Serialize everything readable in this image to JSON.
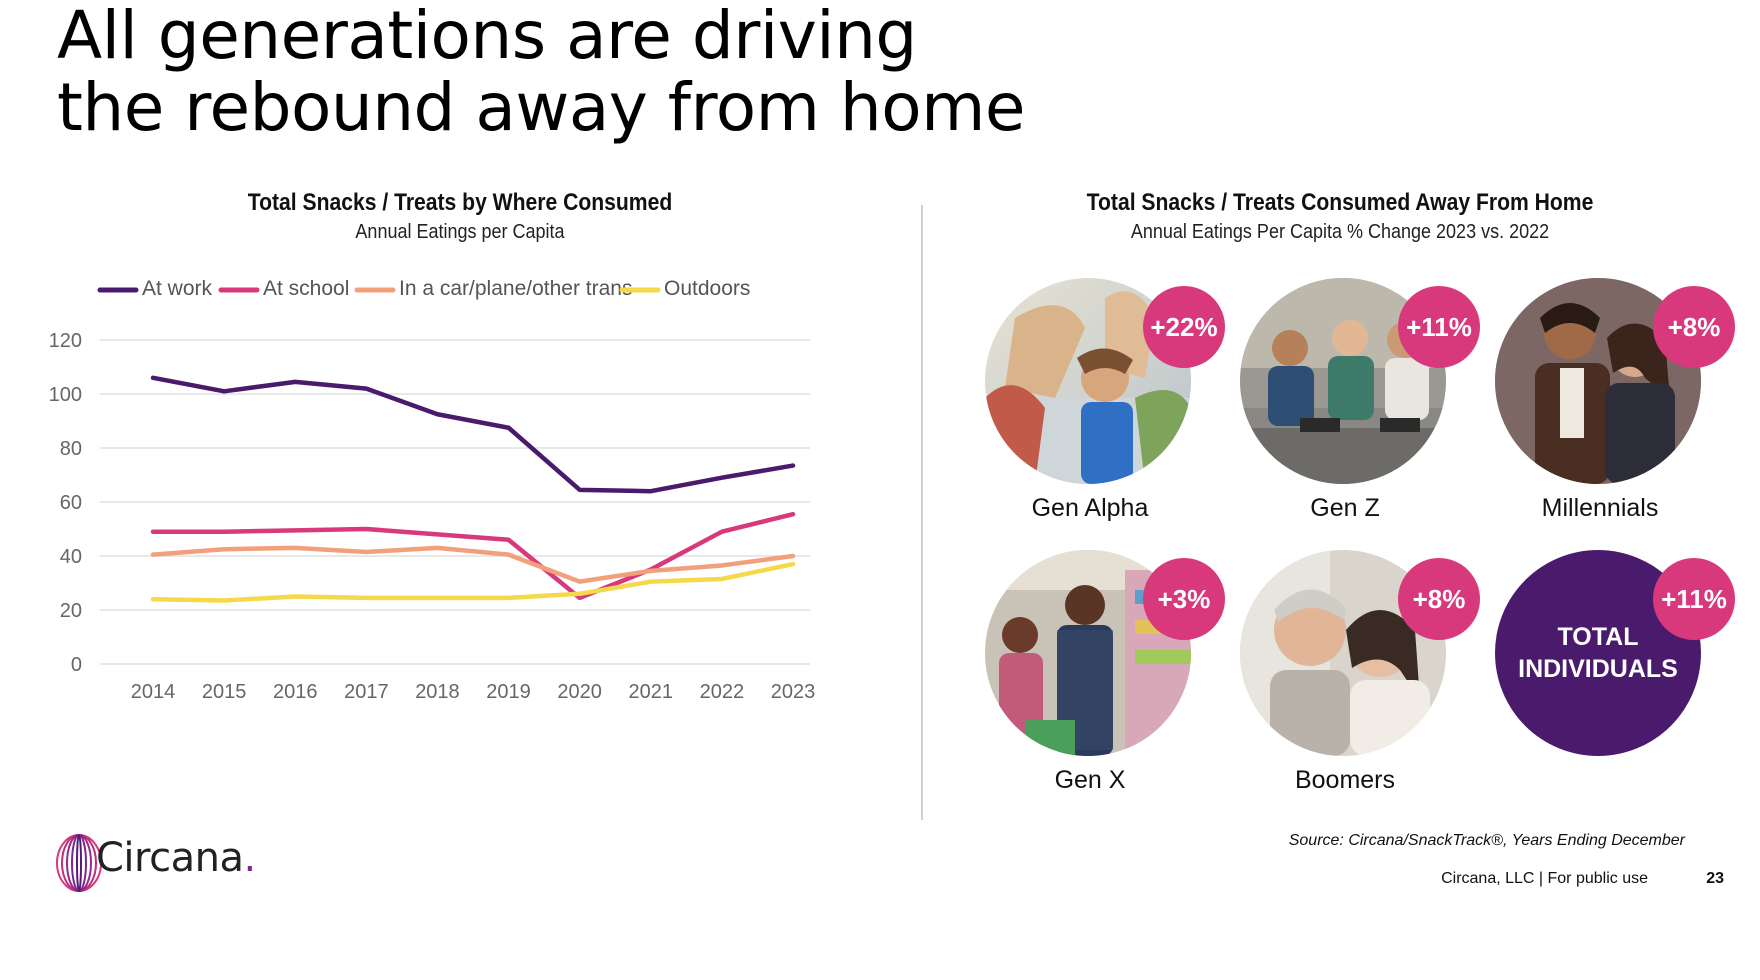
{
  "headline": {
    "line1": "All generations are driving",
    "line2": "the rebound away from home"
  },
  "left_panel": {
    "title": "Total Snacks / Treats by Where Consumed",
    "subtitle": "Annual Eatings per Capita"
  },
  "right_panel": {
    "title": "Total Snacks / Treats Consumed Away From Home",
    "subtitle": "Annual Eatings Per Capita % Change 2023 vs. 2022"
  },
  "chart_data": {
    "type": "line",
    "title": "Total Snacks / Treats by Where Consumed",
    "subtitle": "Annual Eatings per Capita",
    "x": [
      "2014",
      "2015",
      "2016",
      "2017",
      "2018",
      "2019",
      "2020",
      "2021",
      "2022",
      "2023"
    ],
    "ylim": [
      0,
      120
    ],
    "yticks": [
      0,
      20,
      40,
      60,
      80,
      100,
      120
    ],
    "grid": true,
    "legend_position": "top",
    "series": [
      {
        "name": "At work",
        "color": "#4a1a6c",
        "values": [
          106,
          101,
          104.5,
          102,
          92.5,
          87.5,
          64.5,
          64,
          69,
          73.5
        ]
      },
      {
        "name": "At school",
        "color": "#d8397c",
        "values": [
          49,
          49,
          49.5,
          50,
          48,
          46,
          24.5,
          35,
          49,
          55.5
        ]
      },
      {
        "name": "In a car/plane/other trans",
        "color": "#f2a07b",
        "values": [
          40.5,
          42.5,
          43,
          41.5,
          43,
          40.5,
          30.5,
          34.5,
          36.5,
          40
        ]
      },
      {
        "name": "Outdoors",
        "color": "#f5d94a",
        "values": [
          24,
          23.5,
          25,
          24.5,
          24.5,
          24.5,
          26,
          30.5,
          31.5,
          37
        ]
      }
    ]
  },
  "generations": [
    {
      "name": "Gen Alpha",
      "change": "+22%"
    },
    {
      "name": "Gen Z",
      "change": "+11%"
    },
    {
      "name": "Millennials",
      "change": "+8%"
    },
    {
      "name": "Gen X",
      "change": "+3%"
    },
    {
      "name": "Boomers",
      "change": "+8%"
    }
  ],
  "total": {
    "line1": "TOTAL",
    "line2": "INDIVIDUALS",
    "change": "+11%"
  },
  "colors": {
    "accent_pink": "#d8397c",
    "brand_purple": "#4a1a6c"
  },
  "source": "Source: Circana/SnackTrack®, Years Ending December",
  "footer": "Circana, LLC |  For public use",
  "page_number": "23",
  "logo": {
    "text": "Circana",
    "dot": "."
  }
}
